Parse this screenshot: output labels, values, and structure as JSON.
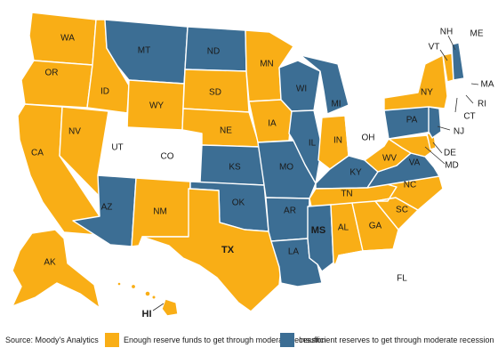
{
  "colors": {
    "enough": "#f9ae16",
    "insufficient": "#3c6e94",
    "neutral": "#ffffff",
    "outline": "#4a4a4a"
  },
  "states": {
    "WA": {
      "label": "WA",
      "status": "enough"
    },
    "OR": {
      "label": "OR",
      "status": "enough"
    },
    "CA": {
      "label": "CA",
      "status": "enough"
    },
    "ID": {
      "label": "ID",
      "status": "enough"
    },
    "NV": {
      "label": "NV",
      "status": "enough"
    },
    "MT": {
      "label": "MT",
      "status": "insufficient"
    },
    "WY": {
      "label": "WY",
      "status": "enough"
    },
    "UT": {
      "label": "UT",
      "status": "neutral"
    },
    "CO": {
      "label": "CO",
      "status": "neutral"
    },
    "AZ": {
      "label": "AZ",
      "status": "insufficient"
    },
    "NM": {
      "label": "NM",
      "status": "enough"
    },
    "ND": {
      "label": "ND",
      "status": "insufficient"
    },
    "SD": {
      "label": "SD",
      "status": "enough"
    },
    "NE": {
      "label": "NE",
      "status": "enough"
    },
    "KS": {
      "label": "KS",
      "status": "insufficient"
    },
    "OK": {
      "label": "OK",
      "status": "insufficient"
    },
    "TX": {
      "label": "TX",
      "status": "enough"
    },
    "MN": {
      "label": "MN",
      "status": "enough"
    },
    "IA": {
      "label": "IA",
      "status": "enough"
    },
    "MO": {
      "label": "MO",
      "status": "insufficient"
    },
    "AR": {
      "label": "AR",
      "status": "insufficient"
    },
    "LA": {
      "label": "LA",
      "status": "insufficient"
    },
    "WI": {
      "label": "WI",
      "status": "insufficient"
    },
    "IL": {
      "label": "IL",
      "status": "insufficient"
    },
    "MI": {
      "label": "MI",
      "status": "insufficient"
    },
    "IN": {
      "label": "IN",
      "status": "enough"
    },
    "OH": {
      "label": "OH",
      "status": "neutral"
    },
    "KY": {
      "label": "KY",
      "status": "insufficient"
    },
    "TN": {
      "label": "TN",
      "status": "enough"
    },
    "MS": {
      "label": "MS",
      "status": "insufficient"
    },
    "AL": {
      "label": "AL",
      "status": "enough"
    },
    "GA": {
      "label": "GA",
      "status": "enough"
    },
    "FL": {
      "label": "FL",
      "status": "neutral"
    },
    "SC": {
      "label": "SC",
      "status": "enough"
    },
    "NC": {
      "label": "NC",
      "status": "enough"
    },
    "VA": {
      "label": "VA",
      "status": "insufficient"
    },
    "WV": {
      "label": "WV",
      "status": "enough"
    },
    "PA": {
      "label": "PA",
      "status": "insufficient"
    },
    "NY": {
      "label": "NY",
      "status": "enough"
    },
    "NJ": {
      "label": "NJ",
      "status": "insufficient"
    },
    "DE": {
      "label": "DE",
      "status": "enough"
    },
    "MD": {
      "label": "MD",
      "status": "enough"
    },
    "VT": {
      "label": "VT",
      "status": "enough"
    },
    "NH": {
      "label": "NH",
      "status": "insufficient"
    },
    "ME": {
      "label": "ME",
      "status": "neutral"
    },
    "MA": {
      "label": "MA",
      "status": "neutral"
    },
    "RI": {
      "label": "RI",
      "status": "neutral"
    },
    "CT": {
      "label": "CT",
      "status": "neutral"
    },
    "AK": {
      "label": "AK",
      "status": "enough"
    },
    "HI": {
      "label": "HI",
      "status": "enough"
    }
  },
  "source": "Source: Moody's Analytics",
  "legend": {
    "enough": "Enough reserve funds to get through moderate recession",
    "insufficient": "Insufficient reserves to get through moderate recession"
  }
}
